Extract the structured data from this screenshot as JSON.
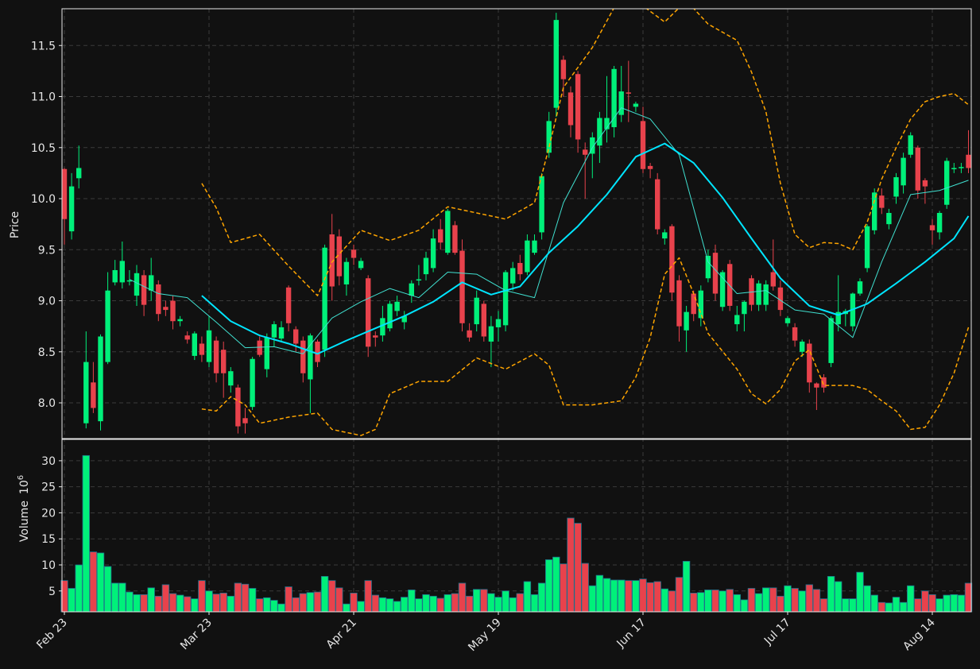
{
  "chart_data": {
    "type": "candlestick",
    "y_label": "Price",
    "volume_label": "Volume",
    "volume_scale": {
      "base": "10",
      "exponent": "6"
    },
    "up_color": "#00f07a",
    "down_color": "#e8424c",
    "categories": [
      "Feb 23",
      null,
      null,
      null,
      null,
      null,
      null,
      null,
      null,
      null,
      null,
      null,
      null,
      null,
      null,
      null,
      null,
      null,
      null,
      null,
      "Mar 23",
      null,
      null,
      null,
      null,
      null,
      null,
      null,
      null,
      null,
      null,
      null,
      null,
      null,
      null,
      null,
      null,
      null,
      null,
      null,
      "Apr 21",
      null,
      null,
      null,
      null,
      null,
      null,
      null,
      null,
      null,
      null,
      null,
      null,
      null,
      null,
      null,
      null,
      null,
      null,
      null,
      "May 19",
      null,
      null,
      null,
      null,
      null,
      null,
      null,
      null,
      null,
      null,
      null,
      null,
      null,
      null,
      null,
      null,
      null,
      null,
      null,
      "Jun 17",
      null,
      null,
      null,
      null,
      null,
      null,
      null,
      null,
      null,
      null,
      null,
      null,
      null,
      null,
      null,
      null,
      null,
      null,
      null,
      "Jul 17",
      null,
      null,
      null,
      null,
      null,
      null,
      null,
      null,
      null,
      null,
      null,
      null,
      null,
      null,
      null,
      null,
      null,
      null,
      null,
      "Aug 14",
      null,
      null,
      null,
      null,
      null
    ],
    "open": [
      10.29,
      9.68,
      10.2,
      7.8,
      8.2,
      7.82,
      8.4,
      9.18,
      9.18,
      9.2,
      9.05,
      9.25,
      9.1,
      9.16,
      8.94,
      9.0,
      8.8,
      8.66,
      8.46,
      8.58,
      8.4,
      8.61,
      8.52,
      8.17,
      8.15,
      7.85,
      7.96,
      8.61,
      8.33,
      8.64,
      8.63,
      9.13,
      8.72,
      8.61,
      8.23,
      8.6,
      8.52,
      9.65,
      9.63,
      9.16,
      9.5,
      9.32,
      9.22,
      8.66,
      8.66,
      8.73,
      8.9,
      8.79,
      9.05,
      9.2,
      9.26,
      9.32,
      9.7,
      9.47,
      9.74,
      9.49,
      8.71,
      8.77,
      8.97,
      8.6,
      8.74,
      8.76,
      9.17,
      9.37,
      9.28,
      9.47,
      9.67,
      10.45,
      10.89,
      11.36,
      11.04,
      11.22,
      10.48,
      10.44,
      10.52,
      10.68,
      10.7,
      10.82,
      11.04,
      10.9,
      10.76,
      10.32,
      10.19,
      9.61,
      9.73,
      9.2,
      8.71,
      9.07,
      8.83,
      9.22,
      9.47,
      8.94,
      9.36,
      8.77,
      8.87,
      9.22,
      8.96,
      8.96,
      9.28,
      9.13,
      8.78,
      8.74,
      8.5,
      8.58,
      8.19,
      8.25,
      8.39,
      8.77,
      8.87,
      8.75,
      9.07,
      9.32,
      9.69,
      10.03,
      9.75,
      10.02,
      10.13,
      10.43,
      10.5,
      10.18,
      9.74,
      9.67,
      9.94,
      10.29,
      10.3,
      10.43
    ],
    "high": [
      10.3,
      10.25,
      10.52,
      8.7,
      8.4,
      8.67,
      9.28,
      9.4,
      9.58,
      9.3,
      9.35,
      9.3,
      9.42,
      9.2,
      9.0,
      9.05,
      8.85,
      8.7,
      8.7,
      8.65,
      8.85,
      8.65,
      8.6,
      8.35,
      8.18,
      7.95,
      8.45,
      8.65,
      8.68,
      8.8,
      8.8,
      9.15,
      8.75,
      8.65,
      8.68,
      8.62,
      9.55,
      9.85,
      9.7,
      9.42,
      9.55,
      9.42,
      9.25,
      8.7,
      8.95,
      9.0,
      9.05,
      8.9,
      9.2,
      9.35,
      9.48,
      9.7,
      9.8,
      9.9,
      9.78,
      9.6,
      8.78,
      9.1,
      9.0,
      8.85,
      8.9,
      9.3,
      9.38,
      9.45,
      9.65,
      9.65,
      10.25,
      10.85,
      11.82,
      11.4,
      11.1,
      11.25,
      10.55,
      10.65,
      10.85,
      11.2,
      11.3,
      11.3,
      11.35,
      10.95,
      10.9,
      10.35,
      10.25,
      9.7,
      9.75,
      9.25,
      8.95,
      9.1,
      9.15,
      9.5,
      9.55,
      9.3,
      9.4,
      8.95,
      9.0,
      9.25,
      9.2,
      9.2,
      9.6,
      9.2,
      8.85,
      8.78,
      8.62,
      8.62,
      8.2,
      8.28,
      8.85,
      9.25,
      8.92,
      9.08,
      9.22,
      9.75,
      10.1,
      10.1,
      9.9,
      10.25,
      10.45,
      10.65,
      10.52,
      10.2,
      9.8,
      9.88,
      10.4,
      10.35,
      10.35,
      10.67
    ],
    "low": [
      9.55,
      9.6,
      10.1,
      7.75,
      7.9,
      7.73,
      8.38,
      9.15,
      9.12,
      9.15,
      8.95,
      8.85,
      9.0,
      8.8,
      8.85,
      8.72,
      8.75,
      8.58,
      8.42,
      8.4,
      8.35,
      8.2,
      8.05,
      8.1,
      7.7,
      7.7,
      7.93,
      8.45,
      8.25,
      8.55,
      8.6,
      8.7,
      8.5,
      8.2,
      7.9,
      8.35,
      8.45,
      9.0,
      9.15,
      9.05,
      9.35,
      9.3,
      8.45,
      8.55,
      8.6,
      8.7,
      8.85,
      8.72,
      8.98,
      9.15,
      9.2,
      9.28,
      9.5,
      9.45,
      9.45,
      8.7,
      8.6,
      8.7,
      8.6,
      8.35,
      8.6,
      8.7,
      9.1,
      9.2,
      9.25,
      9.45,
      9.6,
      10.4,
      10.8,
      11.0,
      10.6,
      10.45,
      10.0,
      10.2,
      10.35,
      10.55,
      10.6,
      10.75,
      10.75,
      10.85,
      10.25,
      10.2,
      9.65,
      9.55,
      9.0,
      8.6,
      8.5,
      8.8,
      8.75,
      9.18,
      9.0,
      8.9,
      8.9,
      8.7,
      8.7,
      8.9,
      8.9,
      8.9,
      9.1,
      8.85,
      8.75,
      8.55,
      8.45,
      8.1,
      7.93,
      8.1,
      8.35,
      8.7,
      8.75,
      8.7,
      9.05,
      9.28,
      9.65,
      9.85,
      9.7,
      9.95,
      10.05,
      10.4,
      10.0,
      9.95,
      9.55,
      9.6,
      9.9,
      10.25,
      10.25,
      10.25
    ],
    "close": [
      9.8,
      10.12,
      10.3,
      8.4,
      7.95,
      8.65,
      9.1,
      9.3,
      9.39,
      9.2,
      9.27,
      8.96,
      9.25,
      8.87,
      8.91,
      8.8,
      8.82,
      8.62,
      8.68,
      8.47,
      8.71,
      8.29,
      8.29,
      8.31,
      7.77,
      7.8,
      8.43,
      8.47,
      8.64,
      8.77,
      8.74,
      8.78,
      8.58,
      8.29,
      8.66,
      8.4,
      9.52,
      9.14,
      9.24,
      9.38,
      9.42,
      9.39,
      8.55,
      8.64,
      8.83,
      8.97,
      8.99,
      8.85,
      9.17,
      9.21,
      9.42,
      9.61,
      9.57,
      9.88,
      9.47,
      8.78,
      8.64,
      9.03,
      8.65,
      8.75,
      8.82,
      9.28,
      9.32,
      9.26,
      9.59,
      9.59,
      10.22,
      10.76,
      11.75,
      11.17,
      10.72,
      10.58,
      10.43,
      10.6,
      10.79,
      10.79,
      11.27,
      11.05,
      11.03,
      10.93,
      10.29,
      10.29,
      9.7,
      9.67,
      9.08,
      8.75,
      8.89,
      8.87,
      9.1,
      9.44,
      9.07,
      9.28,
      8.95,
      8.86,
      8.99,
      8.96,
      9.17,
      9.16,
      9.14,
      8.91,
      8.83,
      8.61,
      8.6,
      8.2,
      8.15,
      8.15,
      8.83,
      8.89,
      8.9,
      9.07,
      9.19,
      9.73,
      10.06,
      9.91,
      9.86,
      10.21,
      10.4,
      10.62,
      10.08,
      10.12,
      9.69,
      9.86,
      10.37,
      10.3,
      10.31,
      10.3
    ],
    "volume": [
      7,
      5.5,
      10,
      31,
      12.5,
      12.3,
      9.7,
      6.5,
      6.5,
      4.8,
      4.3,
      4.3,
      5.6,
      4,
      6.2,
      4.5,
      4.2,
      3.9,
      3.5,
      7,
      5,
      4.4,
      4.6,
      4,
      6.5,
      6.3,
      5.5,
      3.5,
      3.7,
      3.2,
      2.5,
      5.8,
      3.7,
      4.5,
      4.7,
      4.8,
      7.8,
      7,
      5.6,
      2.5,
      4.6,
      3,
      7,
      4.2,
      3.7,
      3.5,
      3,
      3.8,
      5.2,
      3.5,
      4.3,
      4,
      3.6,
      4.3,
      4.5,
      6.5,
      4,
      5.3,
      5.3,
      4.5,
      3.8,
      5,
      3.7,
      4.5,
      6.8,
      4.3,
      6.5,
      11,
      11.5,
      10.2,
      19,
      18,
      10.3,
      6,
      8,
      7.4,
      7.1,
      7.1,
      7,
      7,
      7.3,
      6.6,
      6.8,
      5.4,
      5,
      7.6,
      10.7,
      4.6,
      4.7,
      5.2,
      5.2,
      5,
      5.3,
      4.3,
      3.3,
      5.5,
      4.5,
      5.6,
      5.6,
      4,
      6,
      5.5,
      5,
      6.2,
      5.3,
      3.5,
      7.8,
      6.8,
      3.5,
      3.5,
      8.6,
      6,
      4.2,
      2.8,
      2.7,
      3.8,
      2.8,
      6,
      3.5,
      5,
      4.3,
      3.5,
      4.2,
      4.3,
      4.2,
      6.5
    ],
    "overlays": [
      {
        "color": "#40e0d0",
        "width": 1,
        "x": [
          9,
          13,
          17,
          21,
          25,
          29,
          33,
          37,
          41,
          45,
          49,
          53,
          57,
          61,
          65,
          69,
          73,
          77,
          81,
          85,
          89,
          93,
          97,
          101,
          105,
          109,
          113,
          117,
          121,
          125
        ],
        "values": [
          9.21,
          9.07,
          9.03,
          8.79,
          8.54,
          8.55,
          8.48,
          8.83,
          8.99,
          9.12,
          9.03,
          9.28,
          9.26,
          9.1,
          9.03,
          9.96,
          10.5,
          10.89,
          10.78,
          10.43,
          9.38,
          9.07,
          9.1,
          8.91,
          8.87,
          8.64,
          9.38,
          10.04,
          10.08,
          10.18
        ]
      },
      {
        "color": "#00e5ff",
        "width": 2,
        "x": [
          19,
          23,
          27,
          31,
          35,
          39,
          43,
          47,
          51,
          55,
          59,
          63,
          67,
          71,
          75,
          79,
          83,
          87,
          91,
          95,
          99,
          103,
          107,
          111,
          115,
          119,
          123,
          125
        ],
        "values": [
          9.05,
          8.8,
          8.66,
          8.58,
          8.48,
          8.61,
          8.73,
          8.85,
          8.99,
          9.18,
          9.06,
          9.14,
          9.47,
          9.73,
          10.04,
          10.41,
          10.54,
          10.35,
          10.01,
          9.61,
          9.22,
          8.95,
          8.86,
          8.97,
          9.17,
          9.38,
          9.61,
          9.83
        ]
      },
      {
        "color": "#ffa500",
        "width": 1.5,
        "dash": true,
        "x": [
          19,
          21,
          23,
          27,
          31,
          35,
          37,
          41,
          45,
          49,
          53,
          57,
          61,
          65,
          67,
          69,
          73,
          76,
          79,
          83,
          86,
          89,
          93,
          95,
          97,
          99,
          101,
          103,
          105,
          107,
          109,
          111,
          113,
          115,
          117,
          119,
          121,
          123,
          125
        ],
        "values": [
          10.15,
          9.91,
          9.57,
          9.65,
          9.34,
          9.05,
          9.38,
          9.69,
          9.59,
          9.69,
          9.92,
          9.86,
          9.8,
          9.96,
          10.5,
          11.09,
          11.48,
          11.87,
          11.94,
          11.73,
          11.94,
          11.71,
          11.55,
          11.24,
          10.85,
          10.15,
          9.65,
          9.52,
          9.57,
          9.56,
          9.5,
          9.77,
          10.19,
          10.5,
          10.78,
          10.95,
          11.0,
          11.03,
          10.92
        ]
      },
      {
        "color": "#ffa500",
        "width": 1.5,
        "dash": true,
        "x": [
          19,
          21,
          23,
          25,
          27,
          31,
          35,
          37,
          41,
          43,
          45,
          49,
          53,
          57,
          61,
          65,
          67,
          69,
          73,
          77,
          79,
          81,
          83,
          85,
          87,
          89,
          93,
          95,
          97,
          99,
          101,
          103,
          105,
          109,
          111,
          113,
          115,
          117,
          119,
          121,
          123,
          125
        ],
        "values": [
          7.94,
          7.92,
          8.06,
          7.98,
          7.8,
          7.86,
          7.9,
          7.74,
          7.68,
          7.74,
          8.09,
          8.21,
          8.21,
          8.44,
          8.33,
          8.48,
          8.37,
          7.98,
          7.98,
          8.02,
          8.25,
          8.64,
          9.26,
          9.42,
          9.07,
          8.68,
          8.33,
          8.09,
          7.99,
          8.13,
          8.41,
          8.52,
          8.17,
          8.17,
          8.13,
          8.02,
          7.92,
          7.74,
          7.76,
          7.98,
          8.29,
          8.74
        ]
      }
    ],
    "ylim": [
      7.65,
      11.86
    ],
    "yticks": [
      {
        "value": 8,
        "label": "8.0"
      },
      8.5,
      {
        "value": 9,
        "label": "9.0"
      },
      9.5,
      {
        "value": 10,
        "label": "10.0"
      },
      10.5,
      {
        "value": 11,
        "label": "11.0"
      },
      11.5
    ],
    "volume_ylim": [
      1.0,
      34.1
    ],
    "volume_yticks": [
      5,
      10,
      15,
      20,
      25,
      30
    ],
    "grid": true
  }
}
